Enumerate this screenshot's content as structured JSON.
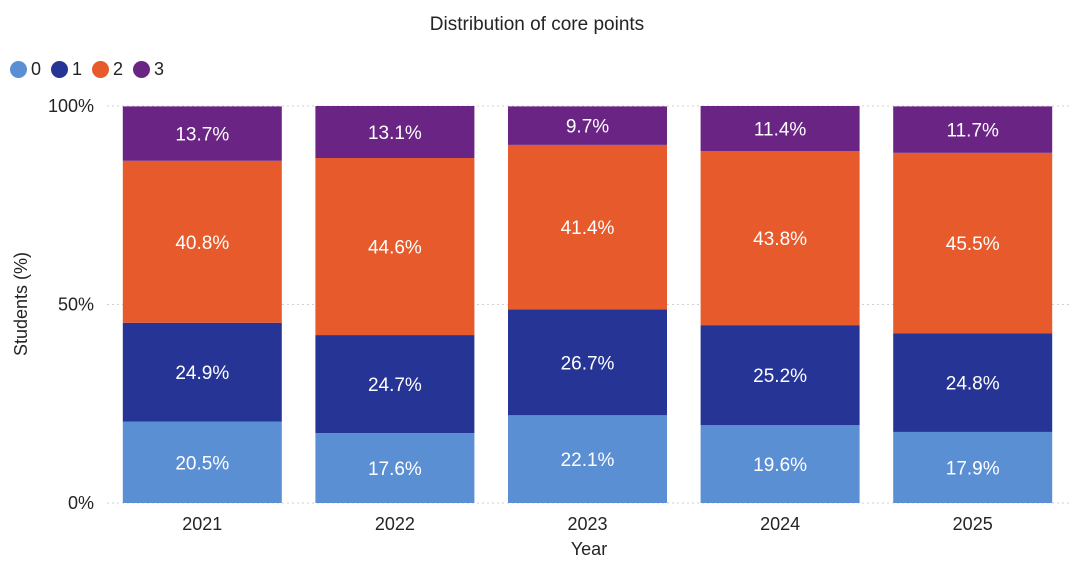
{
  "chart_data": {
    "type": "bar",
    "stacked": true,
    "title": "Distribution of core points",
    "xlabel": "Year",
    "ylabel": "Students (%)",
    "ylim": [
      0,
      100
    ],
    "y_ticks": [
      {
        "value": 0,
        "label": "0%"
      },
      {
        "value": 50,
        "label": "50%"
      },
      {
        "value": 100,
        "label": "100%"
      }
    ],
    "legend_position": "top-left",
    "categories": [
      "2021",
      "2022",
      "2023",
      "2024",
      "2025"
    ],
    "series": [
      {
        "name": "0",
        "color": "#5b8fd3",
        "values": [
          20.5,
          17.6,
          22.1,
          19.6,
          17.9
        ],
        "labels": [
          "20.5%",
          "17.6%",
          "22.1%",
          "19.6%",
          "17.9%"
        ]
      },
      {
        "name": "1",
        "color": "#263495",
        "values": [
          24.9,
          24.7,
          26.7,
          25.2,
          24.8
        ],
        "labels": [
          "24.9%",
          "24.7%",
          "26.7%",
          "25.2%",
          "24.8%"
        ]
      },
      {
        "name": "2",
        "color": "#e65a2c",
        "values": [
          40.8,
          44.6,
          41.4,
          43.8,
          45.5
        ],
        "labels": [
          "40.8%",
          "44.6%",
          "41.4%",
          "43.8%",
          "45.5%"
        ]
      },
      {
        "name": "3",
        "color": "#6a2484",
        "values": [
          13.7,
          13.1,
          9.7,
          11.4,
          11.7
        ],
        "labels": [
          "13.7%",
          "13.1%",
          "9.7%",
          "11.4%",
          "11.7%"
        ]
      }
    ]
  }
}
